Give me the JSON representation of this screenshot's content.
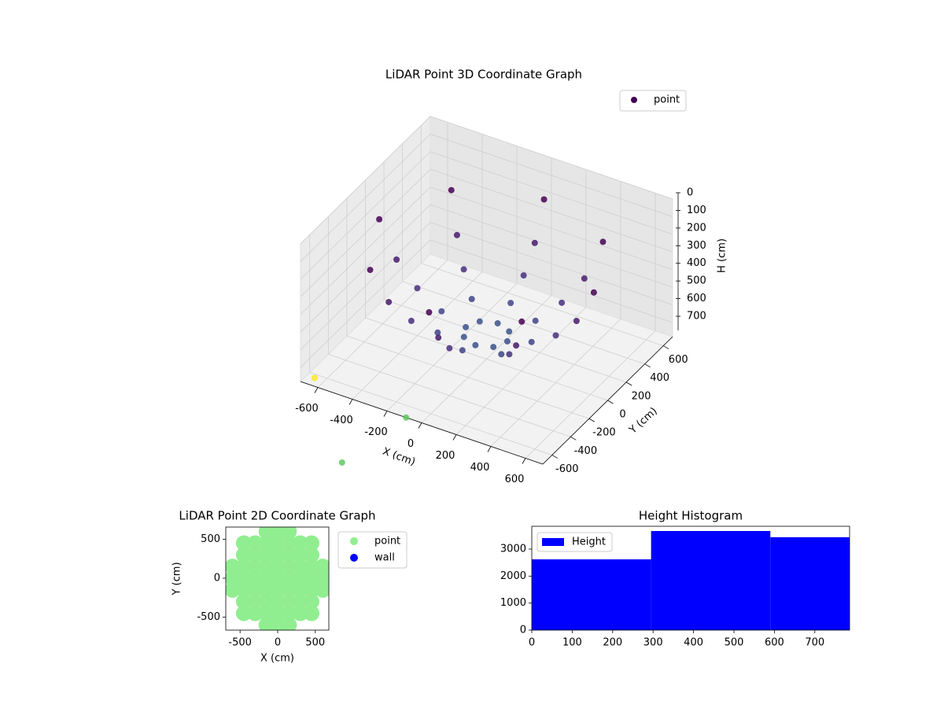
{
  "chart_data": [
    {
      "type": "scatter3d",
      "title": "LiDAR Point 3D Coordinate Graph",
      "xlabel": "X (cm)",
      "ylabel": "Y (cm)",
      "zlabel": "H (cm)",
      "xlim": [
        -700,
        700
      ],
      "ylim": [
        -700,
        700
      ],
      "zlim": [
        0,
        780
      ],
      "zinverted": true,
      "xticks": [
        -600,
        -400,
        -200,
        0,
        200,
        400,
        600
      ],
      "yticks": [
        -600,
        -400,
        -200,
        0,
        200,
        400,
        600
      ],
      "zticks": [
        0,
        100,
        200,
        300,
        400,
        500,
        600,
        700
      ],
      "grid": true,
      "legend": "upper right",
      "series": [
        {
          "name": "point",
          "color": "#440154",
          "x": [
            620,
            438,
            0,
            -438,
            -620,
            -438,
            0,
            438,
            520,
            368,
            0,
            -368,
            -520,
            -368,
            0,
            368,
            400,
            283,
            0,
            -283,
            -400,
            -283,
            0,
            283,
            260,
            184,
            0,
            -184,
            -260,
            -184,
            0,
            184,
            120,
            85,
            0,
            -85,
            -120,
            -85,
            0,
            85,
            -640,
            -90,
            -168
          ],
          "y": [
            0,
            438,
            620,
            438,
            0,
            -438,
            -620,
            -438,
            0,
            368,
            520,
            368,
            0,
            -368,
            -520,
            -368,
            0,
            283,
            400,
            283,
            0,
            -283,
            -400,
            -283,
            0,
            184,
            260,
            184,
            0,
            -184,
            -260,
            -184,
            0,
            85,
            120,
            85,
            0,
            -85,
            -120,
            -85,
            -660,
            -700,
            -1245
          ],
          "z": [
            195,
            195,
            195,
            195,
            195,
            195,
            195,
            195,
            390,
            390,
            390,
            390,
            390,
            390,
            390,
            390,
            512,
            512,
            512,
            512,
            512,
            512,
            512,
            512,
            596,
            596,
            596,
            596,
            596,
            596,
            596,
            596,
            639,
            639,
            639,
            639,
            639,
            639,
            639,
            639,
            760,
            780,
            780
          ],
          "colors": [
            "#440154",
            "#440154",
            "#440154",
            "#440154",
            "#440154",
            "#440154",
            "#440154",
            "#440154",
            "#481a6c",
            "#481a6c",
            "#481a6c",
            "#481a6c",
            "#481a6c",
            "#481a6c",
            "#481a6c",
            "#481a6c",
            "#472f7d",
            "#472f7d",
            "#472f7d",
            "#472f7d",
            "#472f7d",
            "#472f7d",
            "#472f7d",
            "#472f7d",
            "#414487",
            "#414487",
            "#414487",
            "#414487",
            "#414487",
            "#414487",
            "#414487",
            "#414487",
            "#3b528b",
            "#3b528b",
            "#3b528b",
            "#3b528b",
            "#3b528b",
            "#3b528b",
            "#3b528b",
            "#3b528b",
            "#fde725",
            "#5ec962",
            "#5ec962"
          ]
        }
      ]
    },
    {
      "type": "scatter",
      "title": "LiDAR Point 2D Coordinate Graph",
      "xlabel": "X (cm)",
      "ylabel": "Y (cm)",
      "xlim": [
        -690,
        680
      ],
      "ylim": [
        -667,
        657
      ],
      "xticks": [
        -500,
        0,
        500
      ],
      "yticks": [
        -500,
        0,
        500
      ],
      "legend": "upper right outside",
      "series": [
        {
          "name": "point",
          "color": "#90ee90",
          "x": [
            -600,
            -600,
            -600,
            -450,
            -450,
            -450,
            -450,
            -450,
            -450,
            -450,
            -300,
            -300,
            -300,
            -300,
            -300,
            -300,
            -300,
            -150,
            -150,
            -150,
            -150,
            -150,
            -150,
            -150,
            -150,
            -150,
            0,
            0,
            0,
            0,
            0,
            0,
            0,
            0,
            0,
            150,
            150,
            150,
            150,
            150,
            150,
            150,
            150,
            150,
            300,
            300,
            300,
            300,
            300,
            300,
            300,
            450,
            450,
            450,
            450,
            450,
            450,
            450,
            600,
            600,
            600
          ],
          "y": [
            -150,
            0,
            150,
            -450,
            -300,
            -150,
            0,
            150,
            300,
            450,
            -450,
            -300,
            -150,
            0,
            150,
            300,
            450,
            -600,
            -450,
            -300,
            -150,
            0,
            150,
            300,
            450,
            600,
            -600,
            -450,
            -300,
            -150,
            0,
            150,
            300,
            450,
            600,
            -600,
            -450,
            -300,
            -150,
            0,
            150,
            300,
            450,
            600,
            -450,
            -300,
            -150,
            0,
            150,
            300,
            450,
            -450,
            -300,
            -150,
            0,
            150,
            300,
            450,
            -150,
            0,
            150
          ]
        },
        {
          "name": "wall",
          "color": "#0000ff",
          "x": [],
          "y": []
        }
      ]
    },
    {
      "type": "histogram",
      "title": "Height Histogram",
      "name": "Height",
      "color": "#0000ff",
      "bins": [
        0,
        295,
        590,
        786
      ],
      "counts": [
        2620,
        3670,
        3440
      ],
      "xlim": [
        0,
        786
      ],
      "ylim": [
        0,
        3845
      ],
      "xticks": [
        0,
        100,
        200,
        300,
        400,
        500,
        600,
        700
      ],
      "yticks": [
        0,
        1000,
        2000,
        3000
      ],
      "legend": "upper left"
    }
  ]
}
